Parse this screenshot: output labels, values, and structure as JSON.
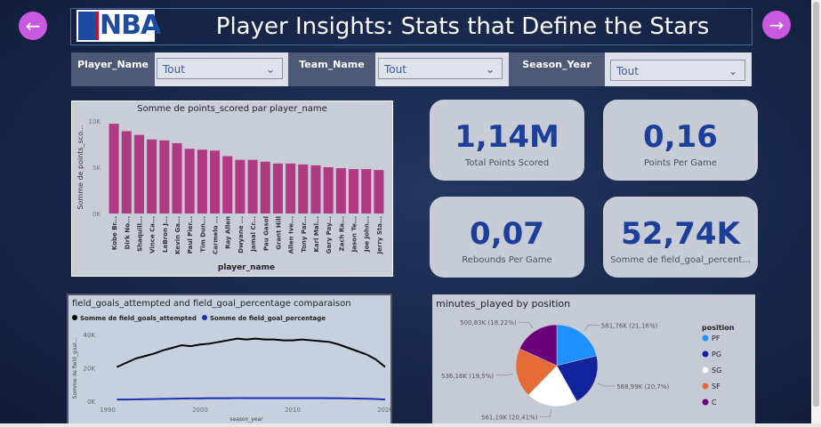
{
  "header": {
    "title": "Player Insights: Stats that Define the Stars",
    "logo_text": "NBA",
    "back_icon": "arrow-left-icon",
    "forward_icon": "arrow-right-icon",
    "back_glyph": "←",
    "forward_glyph": "→"
  },
  "filters": [
    {
      "label": "Player_Name",
      "value": "Tout"
    },
    {
      "label": "Team_Name",
      "value": "Tout"
    },
    {
      "label": "Season_Year",
      "value": "Tout"
    }
  ],
  "kpis": [
    {
      "value": "1,14M",
      "label": "Total Points Scored"
    },
    {
      "value": "0,16",
      "label": "Points Per Game"
    },
    {
      "value": "0,07",
      "label": "Rebounds Per Game"
    },
    {
      "value": "52,74K",
      "label": "Somme de field_goal_percent..."
    }
  ],
  "colors": {
    "accent": "#c95ae0",
    "kpi_value": "#1c3f9a",
    "bar": "#b03a82"
  },
  "chart_data": [
    {
      "type": "bar",
      "title": "Somme de points_scored par player_name",
      "xlabel": "player_name",
      "ylabel": "Somme de points_sco...",
      "ylim": [
        0,
        10000
      ],
      "y_ticks": [
        "0K",
        "5K",
        "10K"
      ],
      "categories": [
        "Kobe Br...",
        "Dirk No...",
        "Shaquill...",
        "Vince Ca...",
        "LeBron J...",
        "Kevin Ga...",
        "Paul Pier...",
        "Tim Dun...",
        "Carmelo ...",
        "Ray Allen",
        "Dwyane ...",
        "Jamal Cr...",
        "Pau Gasol",
        "Grant Hill",
        "Allen Ive...",
        "Tony Par...",
        "Karl Mal...",
        "Gary Pay...",
        "Zach Ra...",
        "Jason Te...",
        "Joe John...",
        "Jerry Sta..."
      ],
      "values": [
        9700,
        8900,
        8500,
        8000,
        7900,
        7600,
        7000,
        6900,
        6800,
        6200,
        5800,
        5800,
        5600,
        5400,
        5400,
        5300,
        5200,
        5000,
        4900,
        4800,
        4800,
        4700
      ]
    },
    {
      "type": "line",
      "title": "field_goals_attempted and field_goal_percentage comparaison",
      "xlabel": "season_year",
      "ylabel": "Somme de field_goal...",
      "ylim": [
        0,
        40000
      ],
      "y_ticks": [
        "0K",
        "20K",
        "40K"
      ],
      "x_ticks": [
        "1990",
        "2000",
        "2010",
        "2020"
      ],
      "x": [
        1991,
        1992,
        1993,
        1994,
        1995,
        1996,
        1997,
        1998,
        1999,
        2000,
        2001,
        2002,
        2003,
        2004,
        2005,
        2006,
        2007,
        2008,
        2009,
        2010,
        2011,
        2012,
        2013,
        2014,
        2015,
        2016,
        2017,
        2018,
        2019,
        2020
      ],
      "series": [
        {
          "name": "Somme de field_goals_attempted",
          "color": "#000000",
          "values": [
            20500,
            23000,
            25500,
            27000,
            28500,
            30500,
            32000,
            33500,
            33000,
            34000,
            34500,
            35500,
            36500,
            37500,
            37000,
            37500,
            37000,
            37000,
            36500,
            36500,
            37000,
            36500,
            36000,
            35500,
            34000,
            32000,
            30000,
            28000,
            25000,
            20500
          ]
        },
        {
          "name": "Somme de field_goal_percentage",
          "color": "#1a2fae",
          "values": [
            1000,
            1000,
            1100,
            1200,
            1300,
            1400,
            1500,
            1600,
            1700,
            1700,
            1800,
            1800,
            1800,
            1900,
            1900,
            1900,
            1900,
            1900,
            1900,
            1900,
            1900,
            1900,
            1900,
            1800,
            1800,
            1700,
            1600,
            1500,
            1300,
            1000
          ]
        }
      ]
    },
    {
      "type": "pie",
      "title": "minutes_played by position",
      "legend_title": "position",
      "slices": [
        {
          "name": "PF",
          "value": 581.76,
          "label": "581,76K (21,16%)",
          "color": "#1e90ff"
        },
        {
          "name": "PG",
          "value": 568.99,
          "label": "568,99K (20,7%)",
          "color": "#12239e"
        },
        {
          "name": "SG",
          "value": 561.19,
          "label": "561,19K (20,41%)",
          "color": "#ffffff"
        },
        {
          "name": "SF",
          "value": 536.16,
          "label": "536,16K (19,5%)",
          "color": "#e66c37"
        },
        {
          "name": "C",
          "value": 500.83,
          "label": "500,83K (18,22%)",
          "color": "#6b007b"
        }
      ]
    }
  ]
}
